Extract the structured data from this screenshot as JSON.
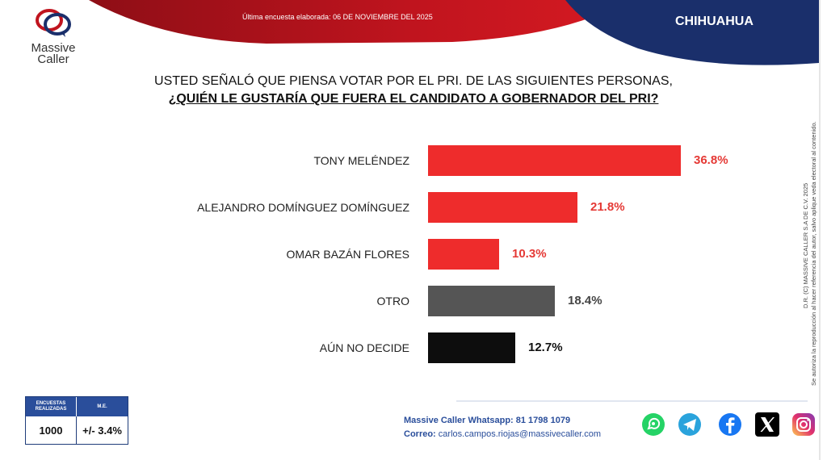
{
  "header": {
    "last_survey": "Última encuesta elaborada: 06 DE NOVIEMBRE DEL 2025",
    "state": "CHIHUAHUA",
    "logo_line1": "Massive",
    "logo_line2": "Caller",
    "colors": {
      "red": "#b5121b",
      "navy": "#1a2f6b",
      "bar_red": "#ee2c2c",
      "bar_gray": "#555555",
      "bar_black": "#0d0d0d"
    }
  },
  "question": {
    "line1": "USTED SEÑALÓ QUE PIENSA VOTAR POR EL PRI. DE LAS SIGUIENTES PERSONAS,",
    "line2": "¿QUIÉN LE GUSTARÍA QUE FUERA EL CANDIDATO A GOBERNADOR DEL PRI?"
  },
  "chart_data": {
    "type": "bar",
    "orientation": "horizontal",
    "categories": [
      "TONY MELÉNDEZ",
      "ALEJANDRO DOMÍNGUEZ DOMÍNGUEZ",
      "OMAR BAZÁN FLORES",
      "OTRO",
      "AÚN NO DECIDE"
    ],
    "values": [
      36.8,
      21.8,
      10.3,
      18.4,
      12.7
    ],
    "value_labels": [
      "36.8%",
      "21.8%",
      "10.3%",
      "18.4%",
      "12.7%"
    ],
    "bar_colors": [
      "#ee2c2c",
      "#ee2c2c",
      "#ee2c2c",
      "#555555",
      "#0d0d0d"
    ],
    "label_colors": [
      "#e53935",
      "#e53935",
      "#e53935",
      "#444444",
      "#111111"
    ],
    "xlim": [
      0,
      36.8
    ],
    "grid": false,
    "title": "",
    "xlabel": "",
    "ylabel": ""
  },
  "side_notice": {
    "line1": "D.R. (C) MASSIVE CALLER S.A DE C.V. 2025",
    "line2": "Se autoriza la reproducción al hacer referencia del autor, salvo aplique veda electoral al contenido."
  },
  "stats_table": {
    "col1_header": "ENCUESTAS REALIZADAS",
    "col2_header": "M.E.",
    "col1_value": "1000",
    "col2_value": "+/- 3.4%"
  },
  "contact": {
    "whatsapp": "Massive Caller Whatsapp: 81 1798 1079",
    "email_label": "Correo:",
    "email": "carlos.campos.riojas@massivecaller.com"
  },
  "social": [
    "whatsapp-icon",
    "telegram-icon",
    "facebook-icon",
    "x-icon",
    "instagram-icon"
  ]
}
